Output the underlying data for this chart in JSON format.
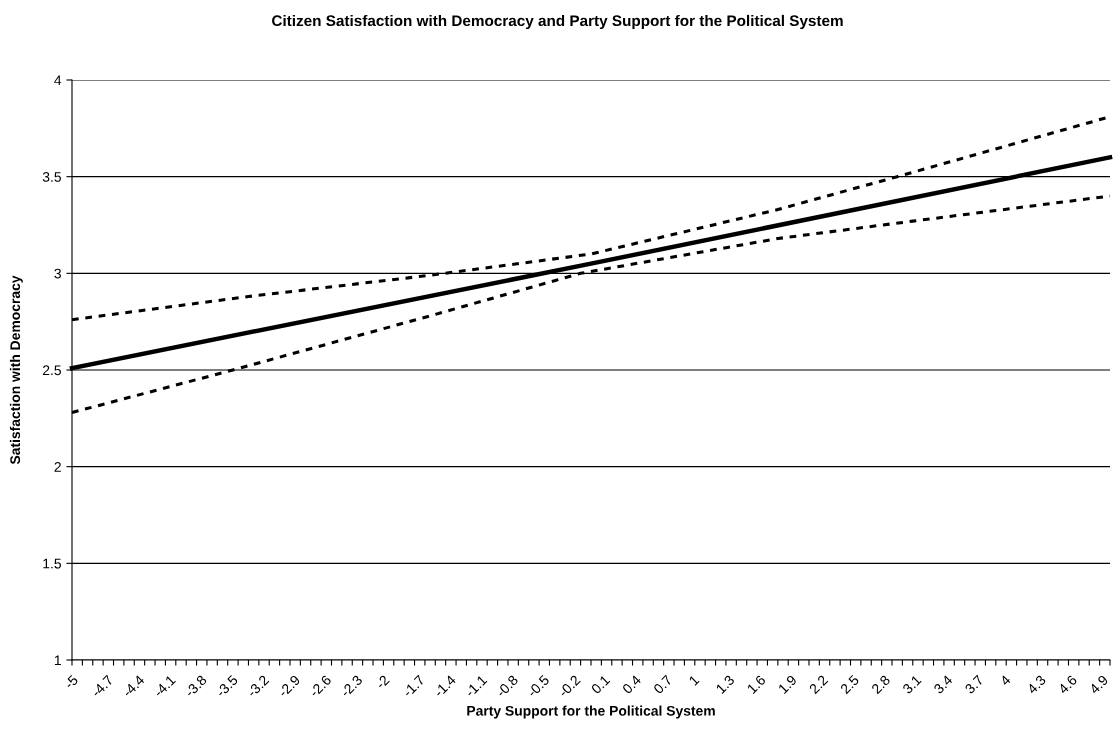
{
  "chart_data": {
    "type": "line",
    "title": "Citizen Satisfaction with Democracy and Party Support for the Political System",
    "xlabel": "Party Support for the Political System",
    "ylabel": "Satisfaction with Democracy",
    "xlim": [
      -5,
      5
    ],
    "ylim": [
      1,
      4
    ],
    "yticks": [
      1,
      1.5,
      2,
      2.5,
      3,
      3.5,
      4
    ],
    "xticks": [
      -5,
      {
        "value": -4.9,
        "label": null
      },
      {
        "value": -4.8,
        "label": null
      },
      -4.7,
      {
        "value": -4.6,
        "label": null
      },
      {
        "value": -4.5,
        "label": null
      },
      -4.4,
      {
        "value": -4.3,
        "label": null
      },
      {
        "value": -4.2,
        "label": null
      },
      -4.1,
      {
        "value": -4.0,
        "label": null
      },
      {
        "value": -3.9,
        "label": null
      },
      -3.8,
      {
        "value": -3.7,
        "label": null
      },
      {
        "value": -3.6,
        "label": null
      },
      -3.5,
      {
        "value": -3.4,
        "label": null
      },
      {
        "value": -3.3,
        "label": null
      },
      -3.2,
      {
        "value": -3.1,
        "label": null
      },
      {
        "value": -3.0,
        "label": null
      },
      -2.9,
      {
        "value": -2.8,
        "label": null
      },
      {
        "value": -2.7,
        "label": null
      },
      -2.6,
      {
        "value": -2.5,
        "label": null
      },
      {
        "value": -2.4,
        "label": null
      },
      -2.3,
      {
        "value": -2.2,
        "label": null
      },
      {
        "value": -2.1,
        "label": null
      },
      -2,
      {
        "value": -1.9,
        "label": null
      },
      {
        "value": -1.8,
        "label": null
      },
      -1.7,
      {
        "value": -1.6,
        "label": null
      },
      {
        "value": -1.5,
        "label": null
      },
      -1.4,
      {
        "value": -1.3,
        "label": null
      },
      {
        "value": -1.2,
        "label": null
      },
      -1.1,
      {
        "value": -1.0,
        "label": null
      },
      {
        "value": -0.9,
        "label": null
      },
      -0.8,
      {
        "value": -0.7,
        "label": null
      },
      {
        "value": -0.6,
        "label": null
      },
      -0.5,
      {
        "value": -0.4,
        "label": null
      },
      {
        "value": -0.3,
        "label": null
      },
      -0.2,
      {
        "value": -0.1,
        "label": null
      },
      {
        "value": 0.0,
        "label": null
      },
      0.1,
      {
        "value": 0.2,
        "label": null
      },
      {
        "value": 0.3,
        "label": null
      },
      0.4,
      {
        "value": 0.5,
        "label": null
      },
      {
        "value": 0.6,
        "label": null
      },
      0.7,
      {
        "value": 0.8,
        "label": null
      },
      {
        "value": 0.9,
        "label": null
      },
      1,
      {
        "value": 1.1,
        "label": null
      },
      {
        "value": 1.2,
        "label": null
      },
      1.3,
      {
        "value": 1.4,
        "label": null
      },
      {
        "value": 1.5,
        "label": null
      },
      1.6,
      {
        "value": 1.7,
        "label": null
      },
      {
        "value": 1.8,
        "label": null
      },
      1.9,
      {
        "value": 2.0,
        "label": null
      },
      {
        "value": 2.1,
        "label": null
      },
      2.2,
      {
        "value": 2.3,
        "label": null
      },
      {
        "value": 2.4,
        "label": null
      },
      2.5,
      {
        "value": 2.6,
        "label": null
      },
      {
        "value": 2.7,
        "label": null
      },
      2.8,
      {
        "value": 2.9,
        "label": null
      },
      {
        "value": 3.0,
        "label": null
      },
      3.1,
      {
        "value": 3.2,
        "label": null
      },
      {
        "value": 3.3,
        "label": null
      },
      3.4,
      {
        "value": 3.5,
        "label": null
      },
      {
        "value": 3.6,
        "label": null
      },
      3.7,
      {
        "value": 3.8,
        "label": null
      },
      {
        "value": 3.9,
        "label": null
      },
      4,
      {
        "value": 4.1,
        "label": null
      },
      {
        "value": 4.2,
        "label": null
      },
      4.3,
      {
        "value": 4.4,
        "label": null
      },
      {
        "value": 4.5,
        "label": null
      },
      4.6,
      {
        "value": 4.7,
        "label": null
      },
      {
        "value": 4.8,
        "label": null
      },
      4.9,
      {
        "value": 5.0,
        "label": null
      }
    ],
    "grid": "y",
    "legend": false,
    "marker": "none",
    "series": [
      {
        "color": "#000000",
        "line_style": "solid",
        "x": [
          -5,
          0,
          5
        ],
        "values": [
          2.51,
          3.05,
          3.6
        ]
      },
      {
        "color": "#000000",
        "line_style": "dashed",
        "x": [
          -5,
          -3.3,
          -1.55,
          0,
          1.8,
          2.95,
          5
        ],
        "values": [
          2.76,
          2.88,
          2.99,
          3.1,
          3.33,
          3.5,
          3.81
        ]
      },
      {
        "color": "#000000",
        "line_style": "dashed",
        "x": [
          -5,
          -3.45,
          -1.55,
          -0.1,
          1.8,
          3.1,
          5
        ],
        "values": [
          2.28,
          2.5,
          2.78,
          3.0,
          3.18,
          3.27,
          3.4
        ]
      }
    ]
  }
}
